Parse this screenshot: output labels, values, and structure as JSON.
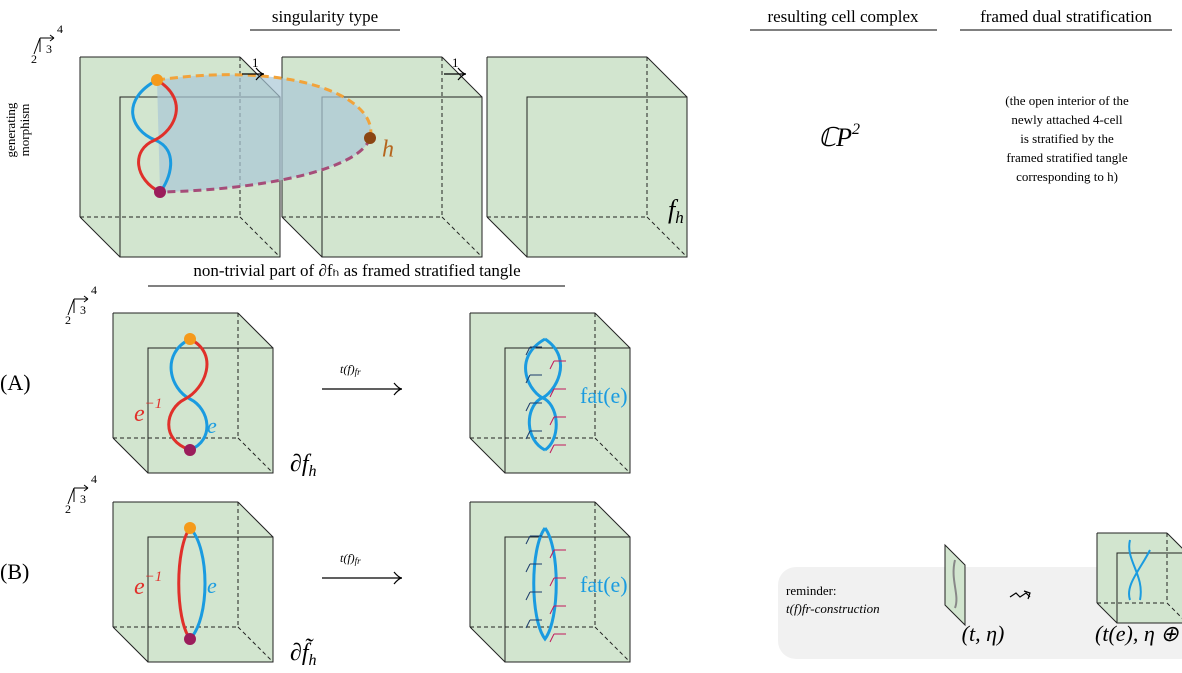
{
  "header": {
    "singularity": "singularity type",
    "cell_complex": "resulting cell complex",
    "dual": "framed dual stratification"
  },
  "side_label": [
    "generating",
    "morphism"
  ],
  "axes": {
    "x": "4",
    "y": "3",
    "z": "2"
  },
  "arrows": [
    "1",
    "1"
  ],
  "h_label": "h",
  "f_h": {
    "main": "f",
    "sub": "h"
  },
  "cp2": {
    "main": "ℂP",
    "sup": "2"
  },
  "note": [
    "(the open interior of the",
    "newly attached 4-cell",
    "is stratified by the",
    "framed stratified tangle",
    "corresponding to h)"
  ],
  "section_title": "non-trivial part of ∂fₕ as framed stratified tangle",
  "rows": [
    {
      "label": "(A)",
      "e_inv": {
        "main": "e",
        "sup": "−1"
      },
      "e": "e",
      "boundary": {
        "main": "∂f",
        "sub": "h"
      },
      "map": {
        "main": "t(f)",
        "sub": "fr"
      },
      "fat": "fat(e)"
    },
    {
      "label": "(B)",
      "e_inv": {
        "main": "e",
        "sup": "−1"
      },
      "e": "e",
      "boundary": {
        "main": "∂f̃",
        "sub": "h"
      },
      "map": {
        "main": "t(f)",
        "sub": "fr"
      },
      "fat": "fat(e)"
    }
  ],
  "reminder": {
    "title": "reminder:",
    "construction": "t(f)fr-construction",
    "left": "(t, η)",
    "right": "(t(e), η ⊕"
  }
}
